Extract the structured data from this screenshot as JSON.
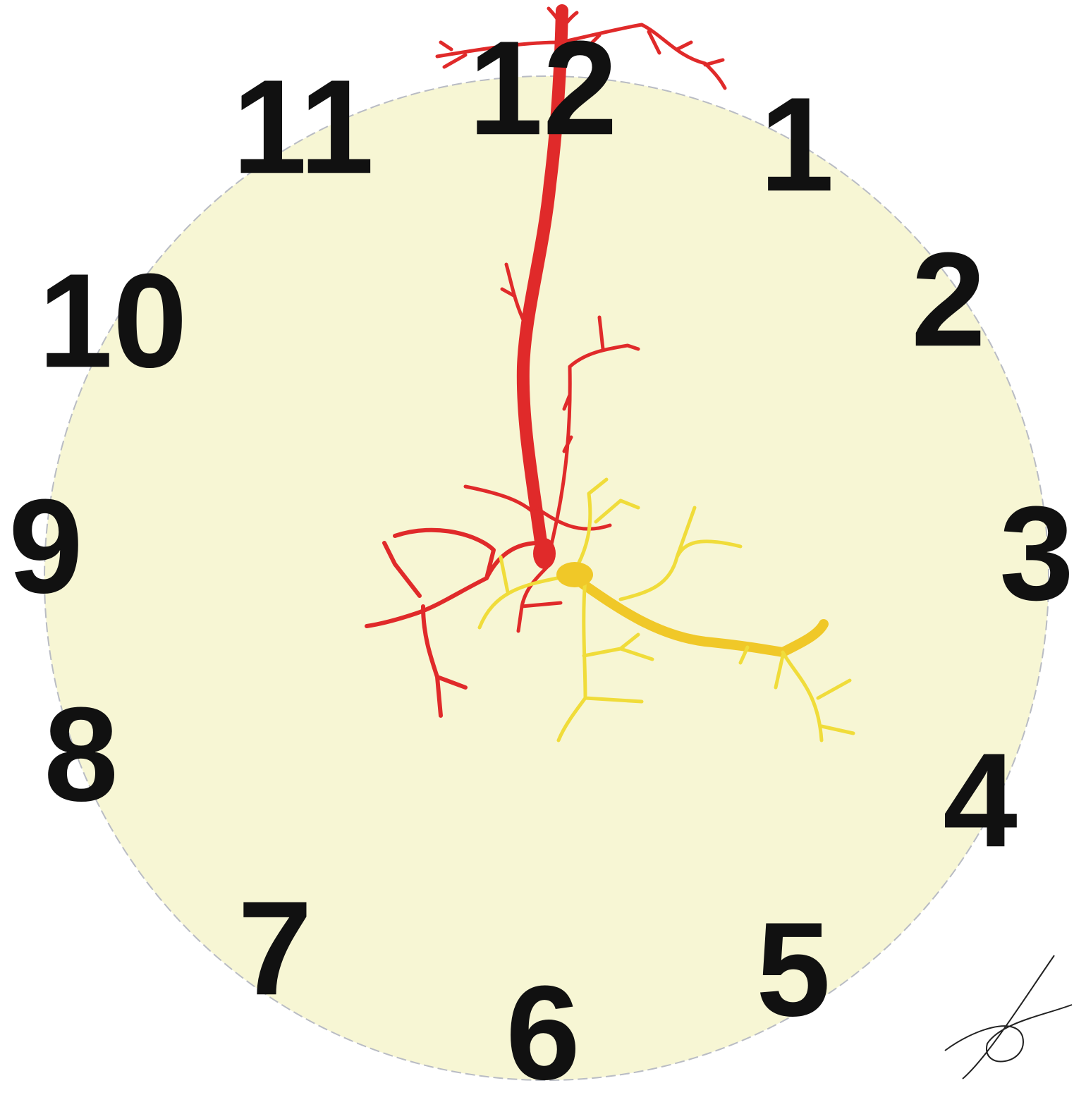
{
  "clock": {
    "numerals": [
      "1",
      "2",
      "3",
      "4",
      "5",
      "6",
      "7",
      "8",
      "9",
      "10",
      "11",
      "12"
    ]
  }
}
